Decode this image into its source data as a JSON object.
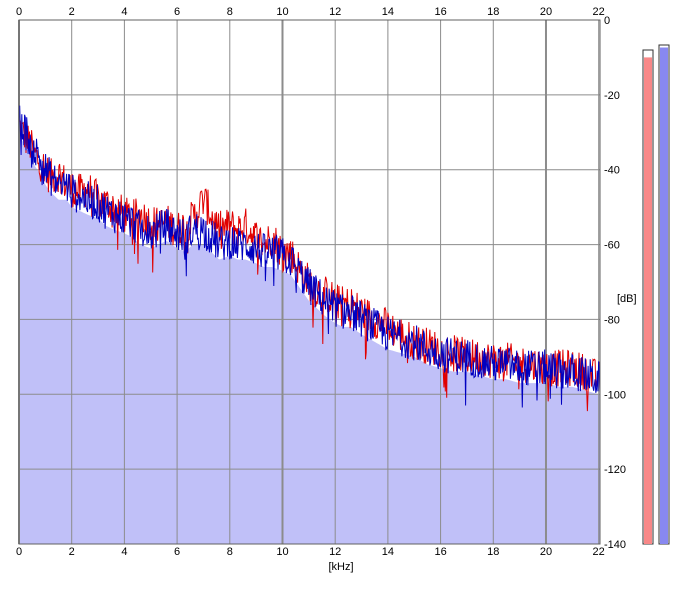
{
  "chart_data": {
    "type": "area",
    "xlabel": "[kHz]",
    "ylabel": "[dB]",
    "xlim": [
      0,
      22.05
    ],
    "ylim": [
      -140,
      0
    ],
    "x_ticks": [
      0,
      2,
      4,
      6,
      8,
      10,
      12,
      14,
      16,
      18,
      20,
      22
    ],
    "x_tick_labels": [
      "0",
      "2",
      "4",
      "6",
      "8",
      "10",
      "12",
      "14",
      "16",
      "18",
      "20",
      "22"
    ],
    "y_ticks": [
      0,
      -20,
      -40,
      -60,
      -80,
      -100,
      -120,
      -140
    ],
    "y_tick_labels": [
      "0",
      "-20",
      "-40",
      "-60",
      "-80",
      "-100",
      "-120",
      "-140"
    ],
    "grid": true,
    "colors": {
      "fill": "#c0c0f8",
      "red_series": "#e00000",
      "blue_series": "#0000c0",
      "grid": "#8c8c8c",
      "meter_left": "#f88888",
      "meter_right": "#8888f0"
    },
    "series": [
      {
        "x": [
          0,
          0.2,
          0.4,
          0.6,
          0.8,
          1.0,
          1.2,
          1.5,
          1.8,
          2.0,
          2.3,
          2.6,
          3.0,
          3.3,
          3.6,
          4.0,
          4.3,
          4.6,
          5.0,
          5.3,
          5.6,
          6.0,
          6.3,
          6.6,
          7.0,
          7.3,
          7.6,
          8.0,
          8.3,
          8.6,
          9.0,
          9.3,
          9.6,
          10.0,
          10.3,
          10.6,
          11.0,
          11.3,
          11.6,
          12.0,
          12.3,
          12.6,
          13.0,
          13.5,
          14.0,
          14.5,
          15.0,
          15.5,
          16.0,
          16.5,
          17.0,
          17.5,
          18.0,
          18.5,
          19.0,
          19.5,
          20.0,
          20.5,
          21.0,
          21.5,
          22.0
        ],
        "values": [
          -28,
          -31,
          -33,
          -36,
          -38,
          -40,
          -42,
          -41,
          -44,
          -45,
          -46,
          -45,
          -48,
          -49,
          -50,
          -52,
          -53,
          -52,
          -54,
          -55,
          -54,
          -56,
          -55,
          -53,
          -48,
          -52,
          -56,
          -55,
          -56,
          -55,
          -58,
          -60,
          -58,
          -62,
          -62,
          -66,
          -70,
          -72,
          -73,
          -75,
          -76,
          -76,
          -78,
          -80,
          -82,
          -84,
          -86,
          -87,
          -88,
          -89,
          -90,
          -90,
          -91,
          -91,
          -92,
          -92,
          -93,
          -93,
          -93,
          -94,
          -96
        ]
      },
      {
        "x": [
          0,
          0.2,
          0.4,
          0.6,
          0.8,
          1.0,
          1.2,
          1.5,
          1.8,
          2.0,
          2.3,
          2.6,
          3.0,
          3.3,
          3.6,
          4.0,
          4.3,
          4.6,
          5.0,
          5.3,
          5.6,
          6.0,
          6.3,
          6.6,
          7.0,
          7.3,
          7.6,
          8.0,
          8.3,
          8.6,
          9.0,
          9.3,
          9.6,
          10.0,
          10.3,
          10.6,
          11.0,
          11.3,
          11.6,
          12.0,
          12.3,
          12.6,
          13.0,
          13.5,
          14.0,
          14.5,
          15.0,
          15.5,
          16.0,
          16.5,
          17.0,
          17.5,
          18.0,
          18.5,
          19.0,
          19.5,
          20.0,
          20.5,
          21.0,
          21.5,
          22.0
        ],
        "values": [
          -27,
          -29,
          -32,
          -35,
          -37,
          -40,
          -42,
          -44,
          -44,
          -46,
          -47,
          -48,
          -49,
          -51,
          -52,
          -53,
          -54,
          -56,
          -57,
          -56,
          -55,
          -57,
          -58,
          -56,
          -56,
          -58,
          -60,
          -59,
          -60,
          -60,
          -61,
          -62,
          -62,
          -63,
          -64,
          -67,
          -71,
          -73,
          -75,
          -77,
          -78,
          -78,
          -80,
          -82,
          -84,
          -85,
          -86,
          -88,
          -89,
          -90,
          -90,
          -91,
          -92,
          -92,
          -93,
          -93,
          -93,
          -94,
          -94,
          -95,
          -96
        ]
      }
    ],
    "meters": {
      "left": 0.985,
      "right": 0.995
    }
  }
}
